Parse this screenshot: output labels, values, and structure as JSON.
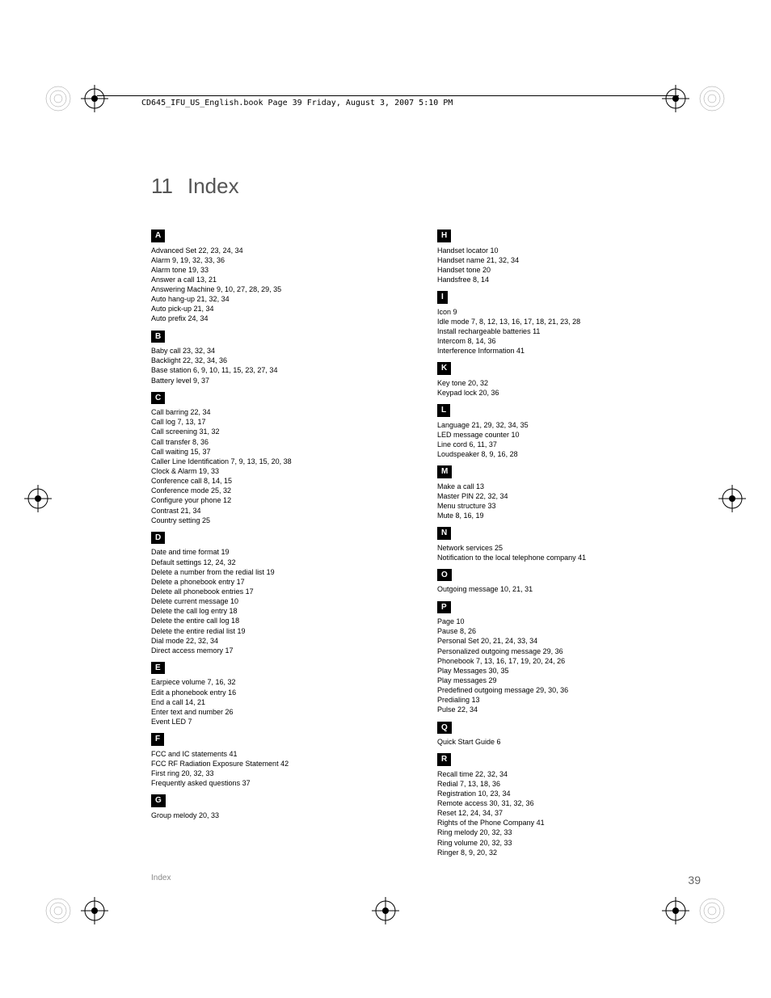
{
  "header": "CD645_IFU_US_English.book  Page 39  Friday, August 3, 2007  5:10 PM",
  "chapter_number": "11",
  "chapter_title": "Index",
  "footer_label": "Index",
  "page_number": "39",
  "index": {
    "left": [
      {
        "letter": "A",
        "entries": [
          "Advanced Set 22, 23, 24, 34",
          "Alarm 9, 19, 32, 33, 36",
          "Alarm tone 19, 33",
          "Answer a call 13, 21",
          "Answering Machine 9, 10, 27, 28, 29, 35",
          "Auto hang-up 21, 32, 34",
          "Auto pick-up 21, 34",
          "Auto prefix 24, 34"
        ]
      },
      {
        "letter": "B",
        "entries": [
          "Baby call 23, 32, 34",
          "Backlight 22, 32, 34, 36",
          "Base station 6, 9, 10, 11, 15, 23, 27, 34",
          "Battery level 9, 37"
        ]
      },
      {
        "letter": "C",
        "entries": [
          "Call barring 22, 34",
          "Call log 7, 13, 17",
          "Call screening 31, 32",
          "Call transfer 8, 36",
          "Call waiting 15, 37",
          "Caller Line Identification 7, 9, 13, 15, 20, 38",
          "Clock & Alarm 19, 33",
          "Conference call 8, 14, 15",
          "Conference mode 25, 32",
          "Configure your phone 12",
          "Contrast 21, 34",
          "Country setting 25"
        ]
      },
      {
        "letter": "D",
        "entries": [
          "Date and time format 19",
          "Default settings 12, 24, 32",
          "Delete a number from the redial list 19",
          "Delete a phonebook entry 17",
          "Delete all phonebook entries 17",
          "Delete current message 10",
          "Delete the call log entry 18",
          "Delete the entire call log 18",
          "Delete the entire redial list 19",
          "Dial mode 22, 32, 34",
          "Direct access memory 17"
        ]
      },
      {
        "letter": "E",
        "entries": [
          "Earpiece volume 7, 16, 32",
          "Edit a phonebook entry 16",
          "End a call 14, 21",
          "Enter text and number 26",
          "Event LED 7"
        ]
      },
      {
        "letter": "F",
        "entries": [
          "FCC and IC statements 41",
          "FCC RF Radiation Exposure Statement 42",
          "First ring 20, 32, 33",
          "Frequently asked questions 37"
        ]
      },
      {
        "letter": "G",
        "entries": [
          "Group melody 20, 33"
        ]
      }
    ],
    "right": [
      {
        "letter": "H",
        "entries": [
          "Handset locator 10",
          "Handset name 21, 32, 34",
          "Handset tone 20",
          "Handsfree 8, 14"
        ]
      },
      {
        "letter": "I",
        "entries": [
          "Icon 9",
          "Idle mode 7, 8, 12, 13, 16, 17, 18, 21, 23, 28",
          "Install rechargeable batteries 11",
          "Intercom 8, 14, 36",
          "Interference Information 41"
        ]
      },
      {
        "letter": "K",
        "entries": [
          "Key tone 20, 32",
          "Keypad lock 20, 36"
        ]
      },
      {
        "letter": "L",
        "entries": [
          "Language 21, 29, 32, 34, 35",
          "LED message counter 10",
          "Line cord 6, 11, 37",
          "Loudspeaker 8, 9, 16, 28"
        ]
      },
      {
        "letter": "M",
        "entries": [
          "Make a call 13",
          "Master PIN 22, 32, 34",
          "Menu structure 33",
          "Mute 8, 16, 19"
        ]
      },
      {
        "letter": "N",
        "entries": [
          "Network services 25",
          "Notification to the local telephone company 41"
        ]
      },
      {
        "letter": "O",
        "entries": [
          "Outgoing message 10, 21, 31"
        ]
      },
      {
        "letter": "P",
        "entries": [
          "Page 10",
          "Pause 8, 26",
          "Personal Set 20, 21, 24, 33, 34",
          "Personalized outgoing message 29, 36",
          "Phonebook 7, 13, 16, 17, 19, 20, 24, 26",
          "Play Messages 30, 35",
          "Play messages 29",
          "Predefined outgoing message 29, 30, 36",
          "Predialing 13",
          "Pulse 22, 34"
        ]
      },
      {
        "letter": "Q",
        "entries": [
          "Quick Start Guide 6"
        ]
      },
      {
        "letter": "R",
        "entries": [
          "Recall time 22, 32, 34",
          "Redial 7, 13, 18, 36",
          "Registration 10, 23, 34",
          "Remote access 30, 31, 32, 36",
          "Reset 12, 24, 34, 37",
          "Rights of the Phone Company 41",
          "Ring melody 20, 32, 33",
          "Ring volume 20, 32, 33",
          "Ringer 8, 9, 20, 32"
        ]
      }
    ]
  }
}
